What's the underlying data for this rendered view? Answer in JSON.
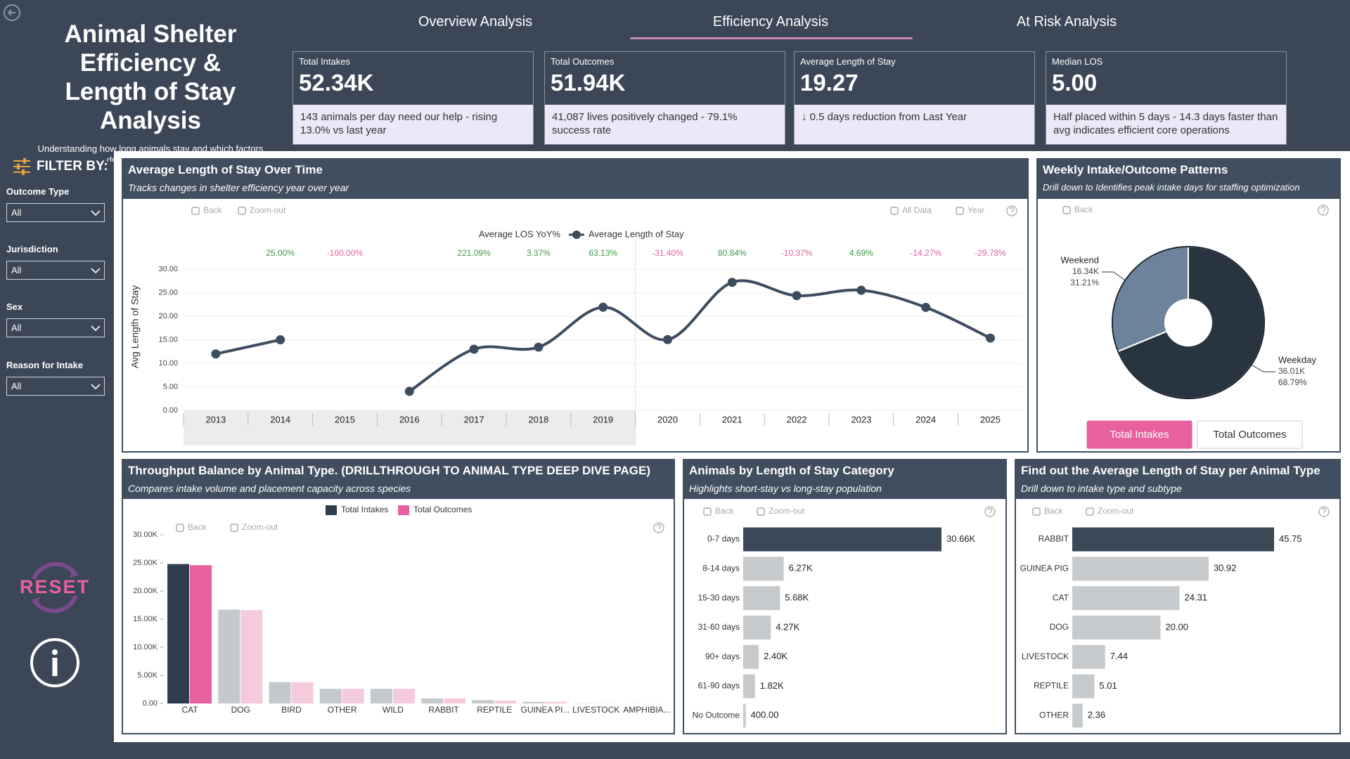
{
  "header": {
    "title": "Animal Shelter Efficiency & Length of Stay Analysis",
    "subtitle": "Understanding how long animals stay and which factors drive operational load"
  },
  "nav": [
    "Overview Analysis",
    "Efficiency Analysis",
    "At Risk Analysis"
  ],
  "kpis": [
    {
      "label": "Total Intakes",
      "value": "52.34K",
      "note": "143 animals per day need our help - rising 13.0% vs last year"
    },
    {
      "label": "Total Outcomes",
      "value": "51.94K",
      "note": "41,087 lives positively changed - 79.1% success rate"
    },
    {
      "label": "Average Length of Stay",
      "value": "19.27",
      "note": "↓ 0.5 days reduction from Last Year"
    },
    {
      "label": "Median LOS",
      "value": "5.00",
      "note": "Half placed within 5 days - 14.3 days faster than avg indicates efficient core operations"
    }
  ],
  "filters": {
    "title": "FILTER BY:",
    "items": [
      {
        "label": "Outcome Type",
        "value": "All"
      },
      {
        "label": "Jurisdiction",
        "value": "All"
      },
      {
        "label": "Sex",
        "value": "All"
      },
      {
        "label": "Reason for Intake",
        "value": "All"
      }
    ]
  },
  "reset": "RESET",
  "chart_data": [
    {
      "type": "line",
      "title": "Average Length of Stay Over Time",
      "subtitle": "Tracks changes in shelter efficiency year over year",
      "y_label": "Avg Length of Stay",
      "controls": [
        "Back",
        "Zoom-out",
        "All Data",
        "Year"
      ],
      "categories": [
        "2013",
        "2014",
        "2015",
        "2016",
        "2017",
        "2018",
        "2019",
        "2020",
        "2021",
        "2022",
        "2023",
        "2024",
        "2025"
      ],
      "series": [
        {
          "name": "Average LOS YoY%",
          "positive_color": "#3c9a48",
          "negative_color": "#e0609e",
          "values": [
            null,
            25.0,
            -100.0,
            null,
            221.09,
            3.37,
            63.13,
            -31.4,
            80.84,
            -10.37,
            4.69,
            -14.27,
            -29.78
          ],
          "value_labels": [
            null,
            "25.00%",
            "-100.00%",
            null,
            "221.09%",
            "3.37%",
            "63.13%",
            "-31.40%",
            "80.84%",
            "-10.37%",
            "4.69%",
            "-14.27%",
            "-29.78%"
          ]
        },
        {
          "name": "Average Length of Stay",
          "color": "#3d4d5f",
          "values": [
            12.0,
            15.0,
            null,
            4.05,
            13.0,
            13.44,
            21.92,
            15.04,
            27.2,
            24.38,
            25.52,
            21.88,
            15.36
          ]
        }
      ],
      "ylim": [
        0,
        30
      ],
      "yticks": [
        {
          "value": 0,
          "label": "0.00"
        },
        {
          "value": 5,
          "label": "5.00"
        },
        {
          "value": 10,
          "label": "10.00"
        },
        {
          "value": 15,
          "label": "15.00"
        },
        {
          "value": 20,
          "label": "20.00"
        },
        {
          "value": 25,
          "label": "25.00"
        },
        {
          "value": 30,
          "label": "30.00"
        }
      ],
      "grid": true
    },
    {
      "type": "donut",
      "title": "Weekly Intake/Outcome Patterns",
      "subtitle": "Drill down to Identifies peak intake days for staffing optimization",
      "controls": [
        "Back"
      ],
      "buttons": [
        "Total Intakes",
        "Total Outcomes"
      ],
      "categories": [
        "Weekend",
        "Weekday"
      ],
      "values": [
        31.21,
        68.79
      ],
      "value_labels": [
        "31.21%",
        "68.79%"
      ],
      "count_labels": [
        "16.34K",
        "36.01K"
      ],
      "colors": [
        "#6d839b",
        "#28343f"
      ]
    },
    {
      "type": "grouped_bar",
      "title": "Throughput Balance by Animal Type. (DRILLTHROUGH TO ANIMAL TYPE DEEP DIVE PAGE)",
      "subtitle": "Compares intake volume and placement capacity across species",
      "controls": [
        "Back",
        "Zoom-out"
      ],
      "categories": [
        "CAT",
        "DOG",
        "BIRD",
        "OTHER",
        "WILD",
        "RABBIT",
        "REPTILE",
        "GUINEA PI...",
        "LIVESTOCK",
        "AMPHIBIA..."
      ],
      "series": [
        {
          "name": "Total Intakes",
          "color": "#2f3e4e",
          "colors": [
            "#2f3e4e",
            "#c4c9cd",
            "#c4c9cd",
            "#c4c9cd",
            "#c4c9cd",
            "#c4c9cd",
            "#c4c9cd",
            "#c4c9cd",
            "#c4c9cd",
            "#c4c9cd"
          ],
          "values": [
            24800,
            16700,
            3800,
            2600,
            2600,
            900,
            600,
            300,
            50,
            20
          ]
        },
        {
          "name": "Total Outcomes",
          "color": "#e8609f",
          "colors": [
            "#e8609f",
            "#f6cadd",
            "#f6cadd",
            "#f6cadd",
            "#f6cadd",
            "#f6cadd",
            "#f6cadd",
            "#f6cadd",
            "#f6cadd",
            "#f6cadd"
          ],
          "values": [
            24600,
            16600,
            3800,
            2600,
            2600,
            900,
            500,
            300,
            30,
            10
          ]
        }
      ],
      "ylim": [
        0,
        30000
      ],
      "yticks": [
        {
          "value": 0,
          "label": "0.00"
        },
        {
          "value": 5000,
          "label": "5.00K"
        },
        {
          "value": 10000,
          "label": "10.00K"
        },
        {
          "value": 15000,
          "label": "15.00K"
        },
        {
          "value": 20000,
          "label": "20.00K"
        },
        {
          "value": 25000,
          "label": "25.00K"
        },
        {
          "value": 30000,
          "label": "30.00K"
        }
      ],
      "grid": false
    },
    {
      "type": "hbar",
      "title": "Animals by Length of Stay Category",
      "subtitle": "Highlights short-stay vs long-stay population",
      "controls": [
        "Back",
        "Zoom-out"
      ],
      "categories": [
        "0-7 days",
        "8-14 days",
        "15-30 days",
        "31-60 days",
        "90+ days",
        "61-90 days",
        "No Outcome"
      ],
      "values": [
        30660,
        6270,
        5680,
        4270,
        2400,
        1820,
        400
      ],
      "value_labels": [
        "30.66K",
        "6.27K",
        "5.68K",
        "4.27K",
        "2.40K",
        "1.82K",
        "400.00"
      ],
      "colors": [
        "#3a4858",
        "#c6cacd",
        "#c6cacd",
        "#c6cacd",
        "#c6cacd",
        "#c6cacd",
        "#c6cacd"
      ]
    },
    {
      "type": "hbar",
      "title": "Find out the Average Length of Stay per Animal Type",
      "subtitle": "Drill down to intake type and subtype",
      "controls": [
        "Back",
        "Zoom-out"
      ],
      "categories": [
        "RABBIT",
        "GUINEA PIG",
        "CAT",
        "DOG",
        "LIVESTOCK",
        "REPTILE",
        "OTHER"
      ],
      "values": [
        45.75,
        30.92,
        24.31,
        20.0,
        7.44,
        5.01,
        2.36
      ],
      "value_labels": [
        "45.75",
        "30.92",
        "24.31",
        "20.00",
        "7.44",
        "5.01",
        "2.36"
      ],
      "colors": [
        "#3a4858",
        "#c6cacd",
        "#c6cacd",
        "#c6cacd",
        "#c6cacd",
        "#c6cacd",
        "#c6cacd"
      ]
    }
  ]
}
